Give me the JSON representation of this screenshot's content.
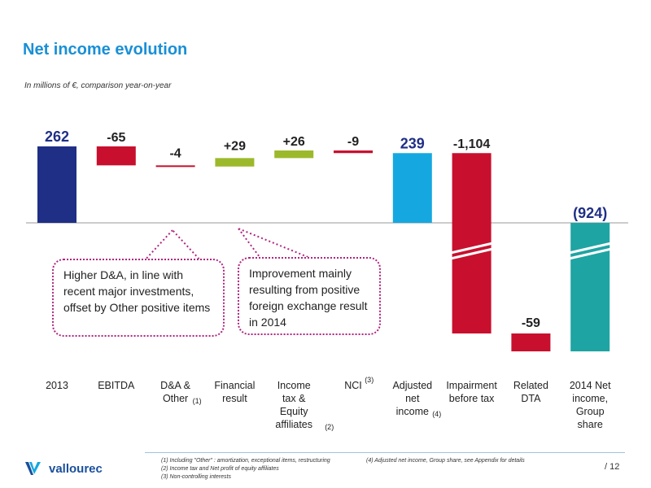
{
  "title": "Net income evolution",
  "subtitle": "In millions of €, comparison year-on-year",
  "chart_data": {
    "type": "bar",
    "subtype": "waterfall",
    "categories": [
      {
        "label": [
          "2013"
        ],
        "sup": ""
      },
      {
        "label": [
          "EBITDA"
        ],
        "sup": ""
      },
      {
        "label": [
          "D&A &",
          "Other"
        ],
        "sup": "(1)"
      },
      {
        "label": [
          "Financial",
          "result"
        ],
        "sup": ""
      },
      {
        "label": [
          "Income",
          "tax &",
          "Equity",
          "affiliates"
        ],
        "sup": "(2)"
      },
      {
        "label": [
          "NCI"
        ],
        "sup": "(3)"
      },
      {
        "label": [
          "Adjusted",
          "net",
          "income"
        ],
        "sup": "(4)"
      },
      {
        "label": [
          "Impairment",
          "before tax"
        ],
        "sup": ""
      },
      {
        "label": [
          "Related",
          "DTA"
        ],
        "sup": ""
      },
      {
        "label": [
          "2014 Net",
          "income,",
          "Group",
          "share"
        ],
        "sup": ""
      }
    ],
    "values": [
      262,
      -65,
      -4,
      29,
      26,
      -9,
      239,
      -1104,
      -59,
      -924
    ],
    "value_labels": [
      "262",
      "-65",
      "-4",
      "+29",
      "+26",
      "-9",
      "239",
      "-1,104",
      "-59",
      "(924)"
    ],
    "kinds": [
      "total",
      "delta",
      "delta",
      "delta",
      "delta",
      "delta",
      "total",
      "delta",
      "delta",
      "total"
    ],
    "axis_breaks": [
      7,
      9
    ],
    "colors": [
      "#1f2f86",
      "#c8102e",
      "#c8102e",
      "#9cb92b",
      "#9cb92b",
      "#c8102e",
      "#15a8e0",
      "#c8102e",
      "#c8102e",
      "#1ea4a3"
    ],
    "label_colors": [
      "#1f2f86",
      "#222222",
      "#222222",
      "#222222",
      "#222222",
      "#222222",
      "#1f2f86",
      "#222222",
      "#222222",
      "#1f2f86"
    ]
  },
  "callouts": [
    "Higher D&A, in line with recent major investments, offset by Other positive items",
    "Improvement mainly resulting from positive foreign exchange result in 2014"
  ],
  "footnotes": {
    "fn1": "(1)   Including \"Other\" : amortization, exceptional items, restructuring",
    "fn2": "(2)   Income tax and Net profit of equity affiliates",
    "fn3": "(3)   Non-controlling interests",
    "fn4": "(4)   Adjusted net income, Group share, see Appendix for details"
  },
  "page_number": "/ 12",
  "logo_text": "vallourec",
  "colors": {
    "accent": "#1a8fd6",
    "callout_border": "#b0247f"
  }
}
